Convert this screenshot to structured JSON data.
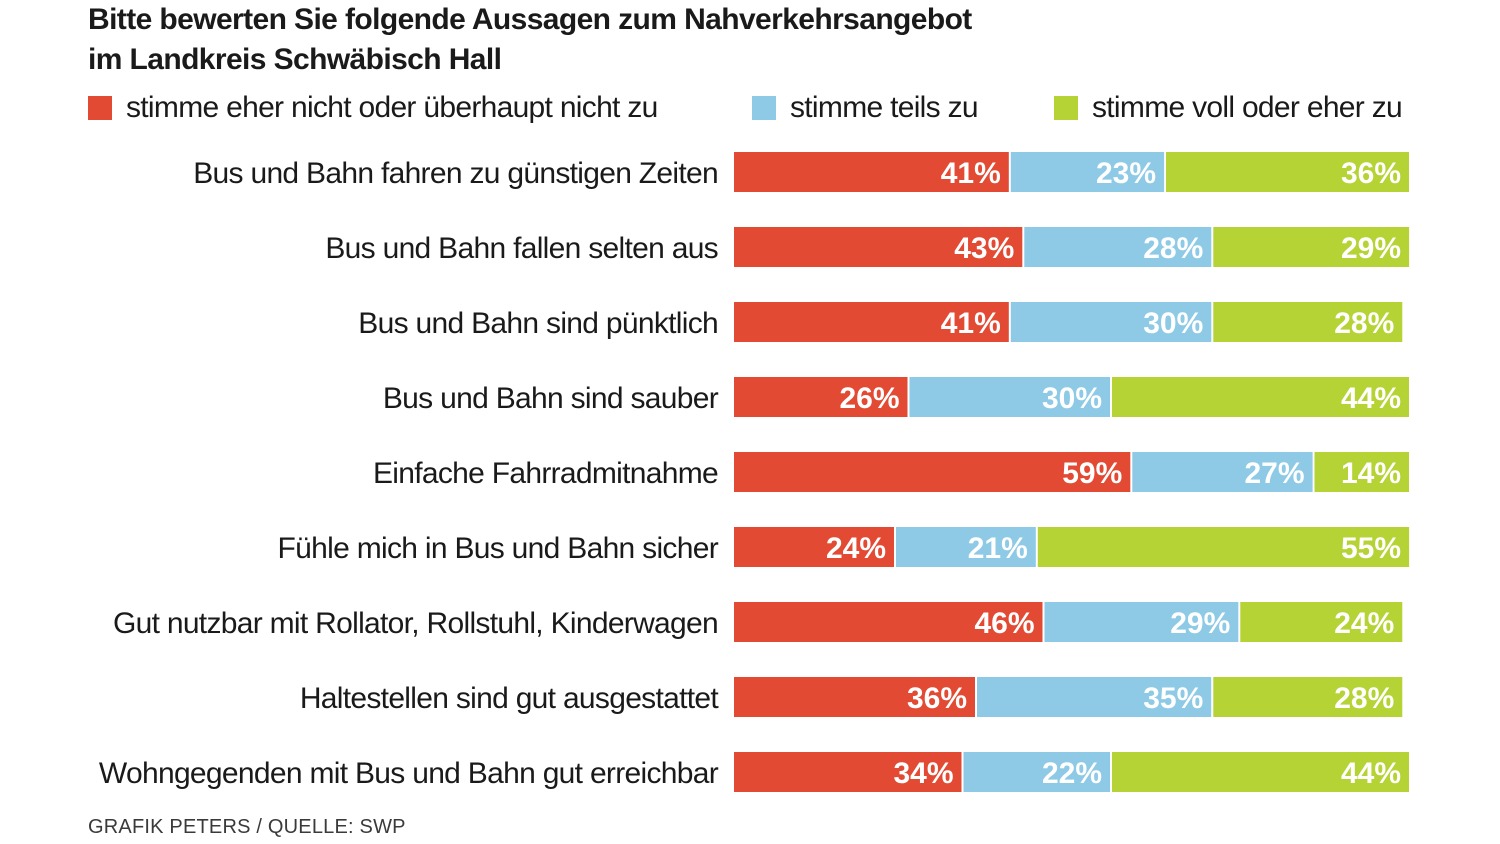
{
  "title": {
    "line1": "Bitte bewerten Sie folgende Aussagen zum Nahverkehrsangebot",
    "line2": "im Landkreis Schwäbisch Hall"
  },
  "source": "GRAFIK PETERS / QUELLE: SWP",
  "chart_data": {
    "type": "bar",
    "orientation": "horizontal",
    "stacked": true,
    "value_unit": "%",
    "categories": [
      "Bus und Bahn fahren zu günstigen Zeiten",
      "Bus und Bahn fallen selten aus",
      "Bus und Bahn sind pünktlich",
      "Bus und Bahn sind sauber",
      "Einfache Fahrradmitnahme",
      "Fühle mich in Bus und Bahn sicher",
      "Gut nutzbar mit Rollator, Rollstuhl, Kinderwagen",
      "Haltestellen sind gut ausgestattet",
      "Wohngegenden mit Bus und Bahn gut erreichbar"
    ],
    "series": [
      {
        "name": "stimme eher nicht oder überhaupt nicht zu",
        "color": "#e34a33",
        "values": [
          41,
          43,
          41,
          26,
          59,
          24,
          46,
          36,
          34
        ]
      },
      {
        "name": "stimme teils zu",
        "color": "#8ecae6",
        "values": [
          23,
          28,
          30,
          30,
          27,
          21,
          29,
          35,
          22
        ]
      },
      {
        "name": "stimme voll oder eher zu",
        "color": "#b5d334",
        "values": [
          36,
          29,
          28,
          44,
          14,
          55,
          24,
          28,
          44
        ]
      }
    ],
    "xlim": [
      0,
      100
    ],
    "grid": false,
    "legend_position": "top"
  }
}
